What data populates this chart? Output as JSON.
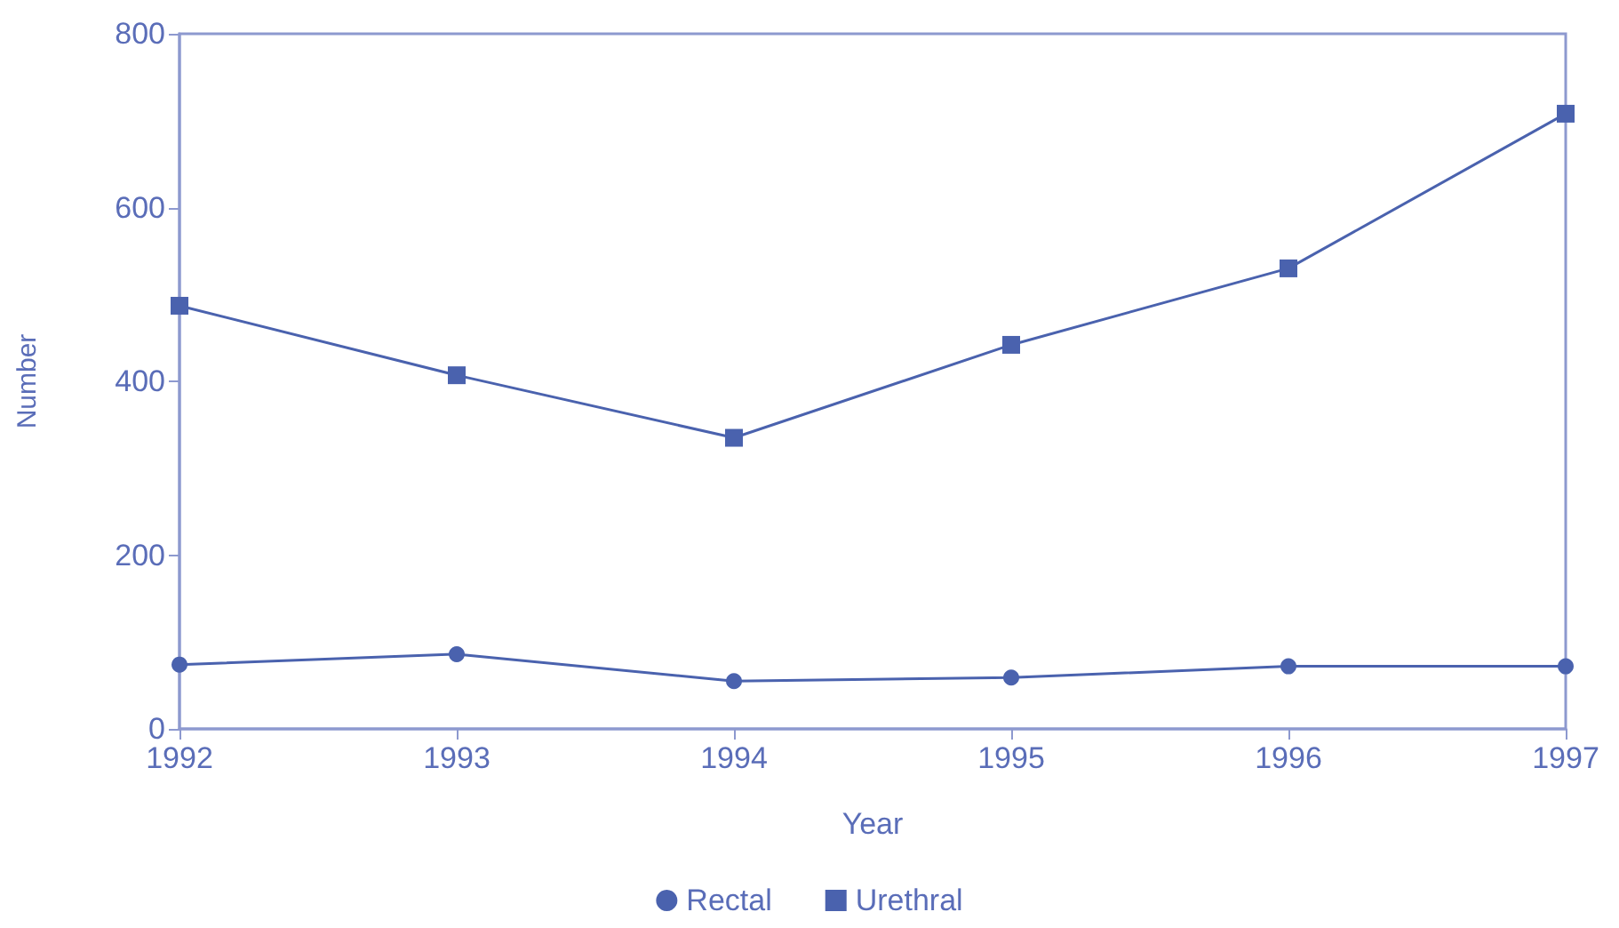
{
  "chart_data": {
    "type": "line",
    "xlabel": "Year",
    "ylabel": "Number",
    "x": [
      1992,
      1993,
      1994,
      1995,
      1996,
      1997
    ],
    "xlim": [
      1992,
      1997
    ],
    "xticks": [
      1992,
      1993,
      1994,
      1995,
      1996,
      1997
    ],
    "ylim": [
      0,
      800
    ],
    "yticks": [
      0,
      200,
      400,
      600,
      800
    ],
    "grid": false,
    "legend": "bottom",
    "series": [
      {
        "name": "Rectal",
        "color": "#4a62ae",
        "marker": "circle",
        "values": [
          74,
          86,
          55,
          59,
          72,
          72
        ]
      },
      {
        "name": "Urethral",
        "color": "#4a62ae",
        "marker": "square",
        "values": [
          487,
          407,
          335,
          442,
          530,
          708
        ]
      }
    ]
  }
}
